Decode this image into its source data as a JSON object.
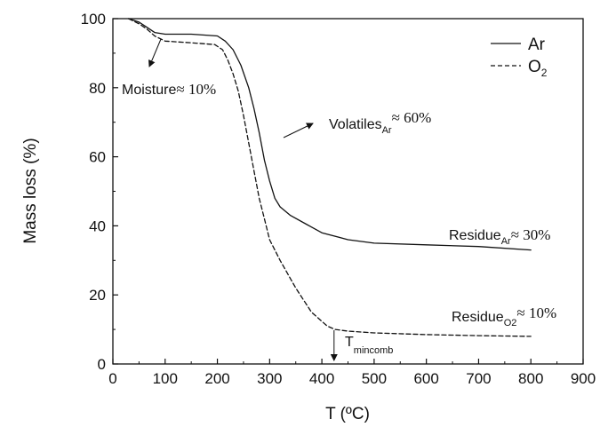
{
  "chart_data": {
    "type": "line",
    "xlabel": "T (ºC)",
    "ylabel": "Mass loss (%)",
    "xlim": [
      0,
      900
    ],
    "ylim": [
      0,
      100
    ],
    "xticks": [
      0,
      100,
      200,
      300,
      400,
      500,
      600,
      700,
      800,
      900
    ],
    "yticks": [
      0,
      20,
      40,
      60,
      80,
      100
    ],
    "grid": false,
    "legend": "top-right",
    "series": [
      {
        "name": "Ar",
        "name_sub": "",
        "style": "solid",
        "x": [
          30,
          50,
          65,
          80,
          100,
          150,
          200,
          215,
          230,
          245,
          260,
          270,
          280,
          290,
          300,
          310,
          320,
          340,
          370,
          400,
          450,
          500,
          600,
          700,
          800
        ],
        "y": [
          100,
          99,
          97.5,
          96,
          95.5,
          95.5,
          95,
          93.5,
          91,
          86.5,
          80,
          74,
          67,
          59,
          53,
          48,
          45.5,
          43,
          40.5,
          38,
          36,
          35,
          34.5,
          34,
          33
        ]
      },
      {
        "name": "O",
        "name_sub": "2",
        "style": "dashed",
        "x": [
          30,
          50,
          65,
          80,
          100,
          150,
          195,
          210,
          220,
          230,
          240,
          250,
          260,
          270,
          280,
          290,
          300,
          320,
          350,
          380,
          410,
          425,
          450,
          500,
          600,
          700,
          800
        ],
        "y": [
          100,
          98.5,
          97,
          95,
          93.5,
          93,
          92.5,
          91,
          88,
          84,
          79,
          72,
          64,
          56,
          48,
          42,
          36,
          30,
          22,
          15,
          11,
          10,
          9.5,
          9,
          8.5,
          8.2,
          8
        ]
      }
    ],
    "annotations": {
      "moisture": {
        "label": "Moisture",
        "approx": "≈ 10%"
      },
      "volatiles": {
        "label": "Volatiles",
        "sub": "Ar",
        "approx": "≈ 60%"
      },
      "residue_ar": {
        "label": "Residue",
        "sub": "Ar",
        "approx": "≈ 30%"
      },
      "residue_o2": {
        "label": "Residue",
        "sub": "O2",
        "approx": "≈ 10%"
      },
      "t_mincomb": {
        "label": "T",
        "sub": "mincomb",
        "x": 425
      }
    }
  }
}
